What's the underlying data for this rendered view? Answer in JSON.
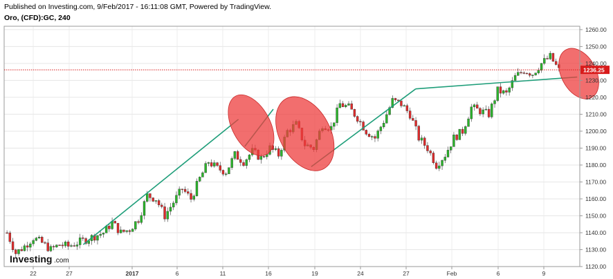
{
  "header": {
    "published": "Published on Investing.com, 9/Feb/2017 - 16:11:08 GMT, Powered by TradingView.",
    "symbol": "Oro, (CFD):GC, 240"
  },
  "watermark": {
    "brand": "Investing",
    "suffix": ".com"
  },
  "colors": {
    "up": "#2bb52b",
    "down": "#e02b2b",
    "trendline": "#1f9e7a",
    "highlight": "#ee3d3d",
    "price_line": "#d81b1b"
  },
  "chart_data": {
    "type": "candlestick",
    "title": "Oro, (CFD):GC, 240",
    "xlabel": "",
    "ylabel": "",
    "ylim": [
      1120,
      1262
    ],
    "y_ticks": [
      1120,
      1130,
      1140,
      1150,
      1160,
      1170,
      1180,
      1190,
      1200,
      1210,
      1220,
      1230,
      1240,
      1250,
      1260
    ],
    "y_tick_labels": [
      "1120.00",
      "1130.00",
      "1140.00",
      "1150.00",
      "1160.00",
      "1170.00",
      "1180.00",
      "1190.00",
      "1200.00",
      "1210.00",
      "1220.00",
      "1230.00",
      "1240.00",
      "1250.00",
      "1260.00"
    ],
    "x_tick_labels": [
      "22",
      "27",
      "2017",
      "6",
      "11",
      "16",
      "19",
      "24",
      "27",
      "Feb",
      "6",
      "9"
    ],
    "last_price": 1236.25,
    "last_price_label": "1236.25",
    "grid": true,
    "path_points": [
      1140,
      1128,
      1132,
      1137,
      1134,
      1130,
      1133,
      1132,
      1134,
      1136,
      1138,
      1140,
      1146,
      1140,
      1142,
      1148,
      1162,
      1160,
      1150,
      1158,
      1166,
      1160,
      1172,
      1182,
      1178,
      1176,
      1186,
      1182,
      1188,
      1184,
      1190,
      1186,
      1200,
      1204,
      1192,
      1190,
      1204,
      1202,
      1216,
      1214,
      1208,
      1200,
      1196,
      1206,
      1218,
      1216,
      1210,
      1196,
      1190,
      1180,
      1186,
      1196,
      1200,
      1214,
      1212,
      1210,
      1224,
      1222,
      1232,
      1236,
      1234,
      1240,
      1244,
      1236
    ],
    "trendlines": [
      {
        "from": [
          0.25,
          1133
        ],
        "to": [
          0.74,
          1207
        ]
      },
      {
        "from": [
          0.76,
          1191
        ],
        "to": [
          0.85,
          1213
        ]
      },
      {
        "from": [
          0.97,
          1179
        ],
        "to": [
          1.3,
          1225
        ]
      },
      {
        "from": [
          1.3,
          1225
        ],
        "to": [
          1.81,
          1232
        ]
      }
    ],
    "highlights": [
      {
        "x_range": [
          0.72,
          0.84
        ],
        "y_range": [
          1184,
          1223
        ]
      },
      {
        "x_range": [
          0.87,
          1.03
        ],
        "y_range": [
          1175,
          1222
        ]
      },
      {
        "x_range": [
          1.76,
          1.87
        ],
        "y_range": [
          1218,
          1250
        ]
      }
    ]
  }
}
